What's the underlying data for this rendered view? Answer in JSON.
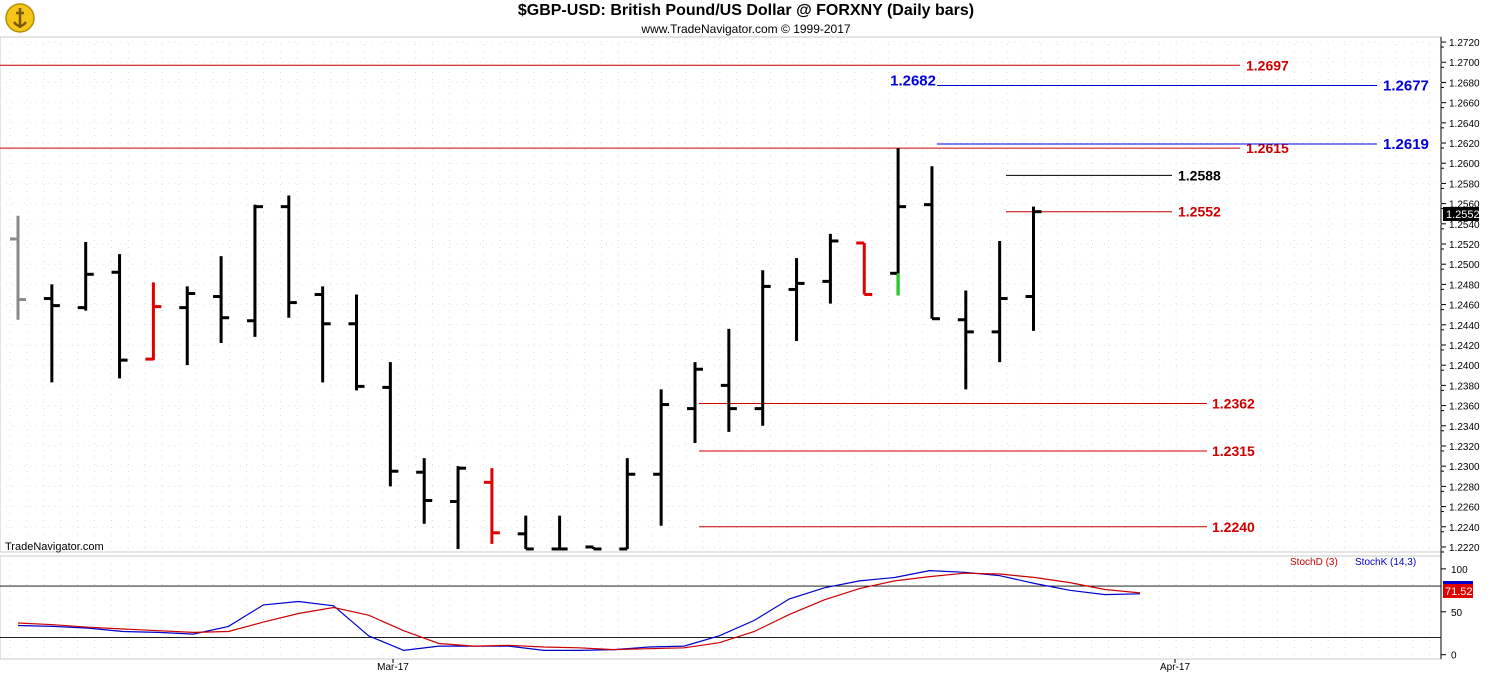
{
  "header": {
    "title": "$GBP-USD:  British Pound/US Dollar @ FORXNY  (Daily bars)",
    "copyright": "www.TradeNavigator.com © 1999-2017"
  },
  "watermark": "TradeNavigator.com",
  "chart_data": [
    {
      "type": "ohlc",
      "ylim": [
        1.2215,
        1.2725
      ],
      "yticks": [
        "1.2220",
        "1.2240",
        "1.2260",
        "1.2280",
        "1.2300",
        "1.2320",
        "1.2340",
        "1.2360",
        "1.2380",
        "1.2400",
        "1.2420",
        "1.2440",
        "1.2460",
        "1.2480",
        "1.2500",
        "1.2520",
        "1.2540",
        "1.2560",
        "1.2580",
        "1.2600",
        "1.2620",
        "1.2640",
        "1.2660",
        "1.2680",
        "1.2700",
        "1.2720"
      ],
      "last_price_label": "1.2552",
      "bars": [
        {
          "h": 1.2548,
          "l": 1.2445,
          "o": 1.2525,
          "c": 1.2465,
          "color": "#8a8a8a"
        },
        {
          "h": 1.248,
          "l": 1.2383,
          "o": 1.2466,
          "c": 1.2459,
          "color": "#000000"
        },
        {
          "h": 1.2522,
          "l": 1.2454,
          "o": 1.2457,
          "c": 1.249,
          "color": "#000000"
        },
        {
          "h": 1.251,
          "l": 1.2387,
          "o": 1.2492,
          "c": 1.2405,
          "color": "#000000"
        },
        {
          "h": 1.2482,
          "l": 1.2405,
          "o": 1.2406,
          "c": 1.2458,
          "color": "#e00000"
        },
        {
          "h": 1.2478,
          "l": 1.24,
          "o": 1.2457,
          "c": 1.2471,
          "color": "#000000"
        },
        {
          "h": 1.2508,
          "l": 1.2422,
          "o": 1.2468,
          "c": 1.2447,
          "color": "#000000"
        },
        {
          "h": 1.2559,
          "l": 1.2428,
          "o": 1.2444,
          "c": 1.2557,
          "color": "#000000"
        },
        {
          "h": 1.2568,
          "l": 1.2447,
          "o": 1.2557,
          "c": 1.2462,
          "color": "#000000"
        },
        {
          "h": 1.2478,
          "l": 1.2383,
          "o": 1.247,
          "c": 1.2441,
          "color": "#000000"
        },
        {
          "h": 1.247,
          "l": 1.2375,
          "o": 1.2441,
          "c": 1.2379,
          "color": "#000000"
        },
        {
          "h": 1.2403,
          "l": 1.228,
          "o": 1.2378,
          "c": 1.2295,
          "color": "#000000"
        },
        {
          "h": 1.2308,
          "l": 1.2243,
          "o": 1.2294,
          "c": 1.2266,
          "color": "#000000"
        },
        {
          "h": 1.23,
          "l": 1.2218,
          "o": 1.2265,
          "c": 1.2298,
          "color": "#000000"
        },
        {
          "h": 1.2298,
          "l": 1.2223,
          "o": 1.2284,
          "c": 1.2234,
          "color": "#e00000"
        },
        {
          "h": 1.2251,
          "l": 1.2218,
          "o": 1.2233,
          "c": 1.2218,
          "color": "#000000"
        },
        {
          "h": 1.2251,
          "l": 1.2218,
          "o": 1.2218,
          "c": 1.2218,
          "color": "#000000"
        },
        {
          "h": 1.222,
          "l": 1.2218,
          "o": 1.222,
          "c": 1.2218,
          "color": "#000000"
        },
        {
          "h": 1.2308,
          "l": 1.2218,
          "o": 1.2218,
          "c": 1.2292,
          "color": "#000000"
        },
        {
          "h": 1.2376,
          "l": 1.2241,
          "o": 1.2292,
          "c": 1.2361,
          "color": "#000000"
        },
        {
          "h": 1.2403,
          "l": 1.2323,
          "o": 1.2357,
          "c": 1.2396,
          "color": "#000000"
        },
        {
          "h": 1.2436,
          "l": 1.2334,
          "o": 1.238,
          "c": 1.2357,
          "color": "#000000"
        },
        {
          "h": 1.2494,
          "l": 1.234,
          "o": 1.2357,
          "c": 1.2478,
          "color": "#000000"
        },
        {
          "h": 1.2506,
          "l": 1.2424,
          "o": 1.2475,
          "c": 1.2481,
          "color": "#000000"
        },
        {
          "h": 1.253,
          "l": 1.2461,
          "o": 1.2483,
          "c": 1.2523,
          "color": "#000000"
        },
        {
          "h": 1.2521,
          "l": 1.247,
          "o": 1.2521,
          "c": 1.247,
          "color": "#e00000"
        },
        {
          "h": 1.2615,
          "l": 1.2469,
          "o": 1.2491,
          "c": 1.2557,
          "color": "#000000",
          "low_color": "#22cc22"
        },
        {
          "h": 1.2597,
          "l": 1.2446,
          "o": 1.2559,
          "c": 1.2446,
          "color": "#000000"
        },
        {
          "h": 1.2474,
          "l": 1.2376,
          "o": 1.2445,
          "c": 1.2433,
          "color": "#000000"
        },
        {
          "h": 1.2523,
          "l": 1.2403,
          "o": 1.2433,
          "c": 1.2466,
          "color": "#000000"
        },
        {
          "h": 1.2557,
          "l": 1.2434,
          "o": 1.2468,
          "c": 1.2552,
          "color": "#000000"
        }
      ],
      "levels": [
        {
          "value": 1.2697,
          "label": "1.2697",
          "color": "#cc0000",
          "style": "full"
        },
        {
          "value": 1.2615,
          "label": "1.2615",
          "color": "#cc0000",
          "style": "full"
        },
        {
          "value": 1.2682,
          "label": "1.2682",
          "color": "#0000dd",
          "style": "blue-left"
        },
        {
          "value": 1.2677,
          "label": "1.2677",
          "color": "#0000dd",
          "style": "blue-right"
        },
        {
          "value": 1.2619,
          "label": "1.2619",
          "color": "#0000dd",
          "style": "blue-right"
        },
        {
          "value": 1.2588,
          "label": "1.2588",
          "color": "#000000",
          "style": "short"
        },
        {
          "value": 1.2552,
          "label": "1.2552",
          "color": "#cc0000",
          "style": "short"
        },
        {
          "value": 1.2362,
          "label": "1.2362",
          "color": "#cc0000",
          "style": "mid"
        },
        {
          "value": 1.2315,
          "label": "1.2315",
          "color": "#cc0000",
          "style": "mid"
        },
        {
          "value": 1.224,
          "label": "1.2240",
          "color": "#cc0000",
          "style": "mid"
        }
      ]
    },
    {
      "type": "line",
      "ylim": [
        -5,
        115
      ],
      "yticks": [
        "0",
        "50",
        "100"
      ],
      "reference_lines": [
        20,
        80
      ],
      "last_value_label": "71.52",
      "legend": [
        "StochD (3)",
        "StochK (14,3)"
      ],
      "series": [
        {
          "name": "StochK (14,3)",
          "color": "#0000cc",
          "values": [
            34,
            33,
            31,
            27,
            26,
            24,
            33,
            58,
            62,
            57,
            22,
            5,
            10,
            10,
            10,
            5,
            5,
            6,
            9,
            10,
            22,
            40,
            65,
            78,
            86,
            90,
            98,
            96,
            92,
            83,
            75,
            70,
            71
          ]
        },
        {
          "name": "StochD (3)",
          "color": "#cc0000",
          "values": [
            37,
            35,
            32,
            30,
            28,
            26,
            27,
            38,
            48,
            55,
            46,
            28,
            13,
            10,
            11,
            9,
            8,
            6,
            7,
            8,
            14,
            27,
            47,
            64,
            77,
            86,
            91,
            95,
            94,
            90,
            84,
            76,
            72
          ]
        }
      ]
    }
  ],
  "x_axis": {
    "ticks": [
      "Mar-17",
      "Apr-17"
    ]
  }
}
